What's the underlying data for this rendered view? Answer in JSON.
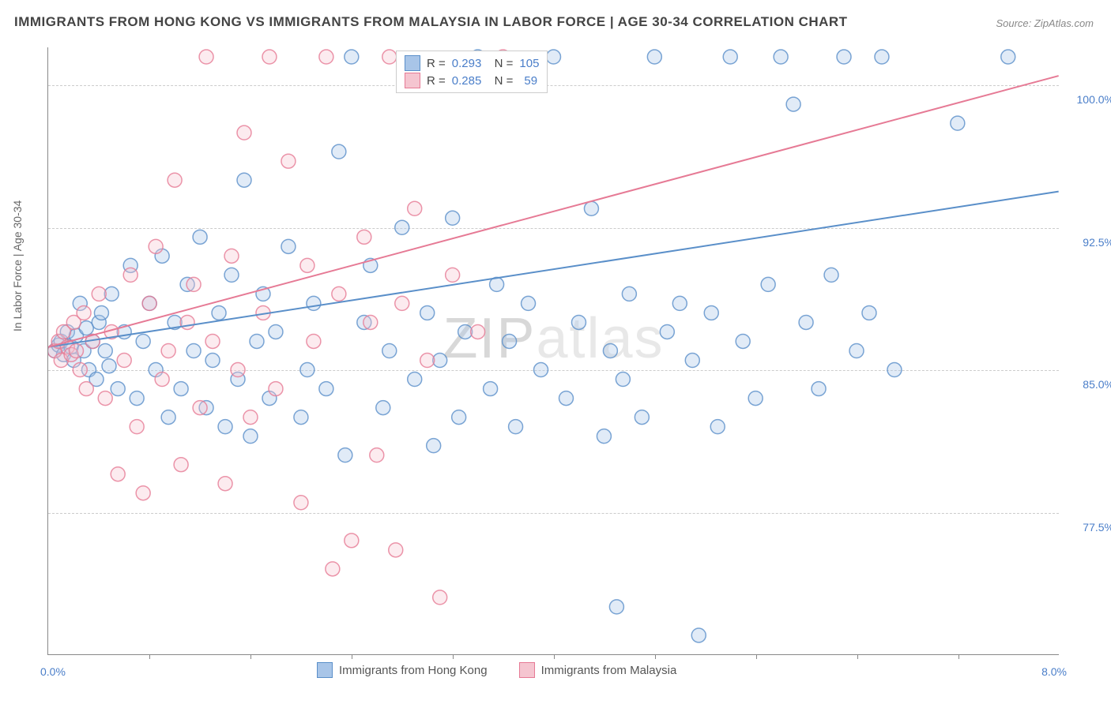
{
  "title": "IMMIGRANTS FROM HONG KONG VS IMMIGRANTS FROM MALAYSIA IN LABOR FORCE | AGE 30-34 CORRELATION CHART",
  "source": "Source: ZipAtlas.com",
  "ylabel": "In Labor Force | Age 30-34",
  "watermark": "ZIPatlas",
  "chart": {
    "type": "scatter",
    "background_color": "#ffffff",
    "grid_color": "#cccccc",
    "axis_color": "#888888",
    "text_color": "#666666",
    "value_color": "#4a7ec9",
    "xlim": [
      0.0,
      8.0
    ],
    "ylim": [
      70.0,
      102.0
    ],
    "ytick_values": [
      77.5,
      85.0,
      92.5,
      100.0
    ],
    "ytick_labels": [
      "77.5%",
      "85.0%",
      "92.5%",
      "100.0%"
    ],
    "xtick_values": [
      0.8,
      1.6,
      2.4,
      3.2,
      4.0,
      4.8,
      5.6,
      6.4,
      7.2
    ],
    "x_axis_min_label": "0.0%",
    "x_axis_max_label": "8.0%",
    "marker_radius": 9,
    "series": [
      {
        "name": "Immigrants from Hong Kong",
        "color_fill": "#a8c5e8",
        "color_stroke": "#5a8fc9",
        "R": "0.293",
        "N": "105",
        "trendline": {
          "x1": 0.0,
          "y1": 86.2,
          "x2": 8.0,
          "y2": 94.4
        },
        "points": [
          [
            0.05,
            86.0
          ],
          [
            0.08,
            86.3
          ],
          [
            0.1,
            86.5
          ],
          [
            0.12,
            85.8
          ],
          [
            0.15,
            87.0
          ],
          [
            0.18,
            86.2
          ],
          [
            0.2,
            85.5
          ],
          [
            0.22,
            86.8
          ],
          [
            0.25,
            88.5
          ],
          [
            0.28,
            86.0
          ],
          [
            0.3,
            87.2
          ],
          [
            0.32,
            85.0
          ],
          [
            0.35,
            86.5
          ],
          [
            0.38,
            84.5
          ],
          [
            0.4,
            87.5
          ],
          [
            0.42,
            88.0
          ],
          [
            0.45,
            86.0
          ],
          [
            0.48,
            85.2
          ],
          [
            0.5,
            89.0
          ],
          [
            0.55,
            84.0
          ],
          [
            0.6,
            87.0
          ],
          [
            0.65,
            90.5
          ],
          [
            0.7,
            83.5
          ],
          [
            0.75,
            86.5
          ],
          [
            0.8,
            88.5
          ],
          [
            0.85,
            85.0
          ],
          [
            0.9,
            91.0
          ],
          [
            0.95,
            82.5
          ],
          [
            1.0,
            87.5
          ],
          [
            1.05,
            84.0
          ],
          [
            1.1,
            89.5
          ],
          [
            1.15,
            86.0
          ],
          [
            1.2,
            92.0
          ],
          [
            1.25,
            83.0
          ],
          [
            1.3,
            85.5
          ],
          [
            1.35,
            88.0
          ],
          [
            1.4,
            82.0
          ],
          [
            1.45,
            90.0
          ],
          [
            1.5,
            84.5
          ],
          [
            1.55,
            95.0
          ],
          [
            1.6,
            81.5
          ],
          [
            1.65,
            86.5
          ],
          [
            1.7,
            89.0
          ],
          [
            1.75,
            83.5
          ],
          [
            1.8,
            87.0
          ],
          [
            1.9,
            91.5
          ],
          [
            2.0,
            82.5
          ],
          [
            2.05,
            85.0
          ],
          [
            2.1,
            88.5
          ],
          [
            2.2,
            84.0
          ],
          [
            2.3,
            96.5
          ],
          [
            2.35,
            80.5
          ],
          [
            2.4,
            101.5
          ],
          [
            2.5,
            87.5
          ],
          [
            2.55,
            90.5
          ],
          [
            2.65,
            83.0
          ],
          [
            2.7,
            86.0
          ],
          [
            2.8,
            92.5
          ],
          [
            2.9,
            84.5
          ],
          [
            3.0,
            88.0
          ],
          [
            3.05,
            81.0
          ],
          [
            3.1,
            85.5
          ],
          [
            3.2,
            93.0
          ],
          [
            3.25,
            82.5
          ],
          [
            3.3,
            87.0
          ],
          [
            3.4,
            101.5
          ],
          [
            3.5,
            84.0
          ],
          [
            3.55,
            89.5
          ],
          [
            3.65,
            86.5
          ],
          [
            3.7,
            82.0
          ],
          [
            3.8,
            88.5
          ],
          [
            3.9,
            85.0
          ],
          [
            4.0,
            101.5
          ],
          [
            4.1,
            83.5
          ],
          [
            4.2,
            87.5
          ],
          [
            4.3,
            93.5
          ],
          [
            4.4,
            81.5
          ],
          [
            4.45,
            86.0
          ],
          [
            4.5,
            72.5
          ],
          [
            4.55,
            84.5
          ],
          [
            4.6,
            89.0
          ],
          [
            4.7,
            82.5
          ],
          [
            4.8,
            101.5
          ],
          [
            4.9,
            87.0
          ],
          [
            5.0,
            88.5
          ],
          [
            5.1,
            85.5
          ],
          [
            5.15,
            71.0
          ],
          [
            5.25,
            88.0
          ],
          [
            5.3,
            82.0
          ],
          [
            5.4,
            101.5
          ],
          [
            5.5,
            86.5
          ],
          [
            5.6,
            83.5
          ],
          [
            5.7,
            89.5
          ],
          [
            5.8,
            101.5
          ],
          [
            5.9,
            99.0
          ],
          [
            6.0,
            87.5
          ],
          [
            6.1,
            84.0
          ],
          [
            6.2,
            90.0
          ],
          [
            6.3,
            101.5
          ],
          [
            6.4,
            86.0
          ],
          [
            6.5,
            88.0
          ],
          [
            6.6,
            101.5
          ],
          [
            6.7,
            85.0
          ],
          [
            7.2,
            98.0
          ],
          [
            7.6,
            101.5
          ]
        ]
      },
      {
        "name": "Immigrants from Malaysia",
        "color_fill": "#f5c5d0",
        "color_stroke": "#e67a95",
        "R": "0.285",
        "N": "59",
        "trendline": {
          "x1": 0.0,
          "y1": 86.2,
          "x2": 8.0,
          "y2": 100.5
        },
        "points": [
          [
            0.05,
            86.0
          ],
          [
            0.08,
            86.5
          ],
          [
            0.1,
            85.5
          ],
          [
            0.12,
            87.0
          ],
          [
            0.15,
            86.2
          ],
          [
            0.18,
            85.8
          ],
          [
            0.2,
            87.5
          ],
          [
            0.22,
            86.0
          ],
          [
            0.25,
            85.0
          ],
          [
            0.28,
            88.0
          ],
          [
            0.3,
            84.0
          ],
          [
            0.35,
            86.5
          ],
          [
            0.4,
            89.0
          ],
          [
            0.45,
            83.5
          ],
          [
            0.5,
            87.0
          ],
          [
            0.55,
            79.5
          ],
          [
            0.6,
            85.5
          ],
          [
            0.65,
            90.0
          ],
          [
            0.7,
            82.0
          ],
          [
            0.75,
            78.5
          ],
          [
            0.8,
            88.5
          ],
          [
            0.85,
            91.5
          ],
          [
            0.9,
            84.5
          ],
          [
            0.95,
            86.0
          ],
          [
            1.0,
            95.0
          ],
          [
            1.05,
            80.0
          ],
          [
            1.1,
            87.5
          ],
          [
            1.15,
            89.5
          ],
          [
            1.2,
            83.0
          ],
          [
            1.25,
            101.5
          ],
          [
            1.3,
            86.5
          ],
          [
            1.4,
            79.0
          ],
          [
            1.45,
            91.0
          ],
          [
            1.5,
            85.0
          ],
          [
            1.55,
            97.5
          ],
          [
            1.6,
            82.5
          ],
          [
            1.7,
            88.0
          ],
          [
            1.75,
            101.5
          ],
          [
            1.8,
            84.0
          ],
          [
            1.9,
            96.0
          ],
          [
            2.0,
            78.0
          ],
          [
            2.05,
            90.5
          ],
          [
            2.1,
            86.5
          ],
          [
            2.2,
            101.5
          ],
          [
            2.25,
            74.5
          ],
          [
            2.3,
            89.0
          ],
          [
            2.4,
            76.0
          ],
          [
            2.5,
            92.0
          ],
          [
            2.55,
            87.5
          ],
          [
            2.6,
            80.5
          ],
          [
            2.7,
            101.5
          ],
          [
            2.75,
            75.5
          ],
          [
            2.8,
            88.5
          ],
          [
            2.9,
            93.5
          ],
          [
            3.0,
            85.5
          ],
          [
            3.1,
            73.0
          ],
          [
            3.2,
            90.0
          ],
          [
            3.4,
            87.0
          ],
          [
            3.6,
            101.5
          ]
        ]
      }
    ]
  }
}
